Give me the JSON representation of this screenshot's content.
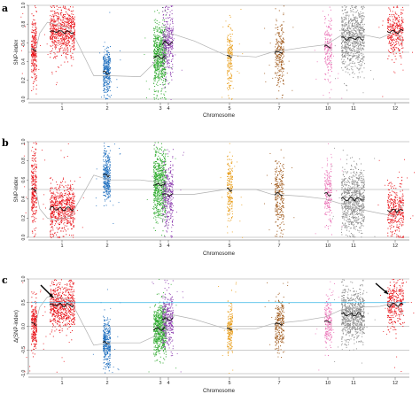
{
  "chart_data": [
    {
      "type": "scatter",
      "panel": "a",
      "xlabel": "Chromosome",
      "ylabel": "SNP-index",
      "ylim": [
        0,
        1
      ],
      "yticks": [
        "0.0",
        "0.2",
        "0.4",
        "0.6",
        "0.8",
        "1.0"
      ],
      "chromosome_ticks": [
        "1",
        "2",
        "3",
        "4",
        "5",
        "7",
        "10",
        "11",
        "12"
      ],
      "reference_lines": [
        0,
        0.5,
        1
      ],
      "clusters": [
        {
          "chr": "1a",
          "center": 0.53,
          "spread": 0.42,
          "color": "#e8151b",
          "density": 700,
          "extra": "a"
        },
        {
          "chr": "1b",
          "center": 0.72,
          "spread": 0.28,
          "color": "#e8151b",
          "density": 1800,
          "extra": "b"
        },
        {
          "chr": "2",
          "center": 0.28,
          "spread": 0.28,
          "color": "#1f6fbf",
          "density": 900
        },
        {
          "chr": "3",
          "center": 0.45,
          "spread": 0.4,
          "color": "#2eaa2e",
          "density": 1800
        },
        {
          "chr": "4",
          "center": 0.6,
          "spread": 0.4,
          "color": "#8e3fb0",
          "density": 900
        },
        {
          "chr": "5",
          "center": 0.45,
          "spread": 0.38,
          "color": "#e89d1a",
          "density": 500
        },
        {
          "chr": "7",
          "center": 0.5,
          "spread": 0.42,
          "color": "#a05a1c",
          "density": 700
        },
        {
          "chr": "10",
          "center": 0.56,
          "spread": 0.36,
          "color": "#ea6fb5",
          "density": 500
        },
        {
          "chr": "11",
          "center": 0.65,
          "spread": 0.36,
          "color": "#8c8c8c",
          "density": 2200
        },
        {
          "chr": "12",
          "center": 0.72,
          "spread": 0.28,
          "color": "#e8151b",
          "density": 900
        }
      ],
      "sliding_window": [
        [
          0.5,
          0.52
        ],
        [
          1,
          0.7
        ],
        [
          2,
          0.82
        ],
        [
          3,
          0.8
        ],
        [
          5,
          0.75
        ],
        [
          8,
          0.25
        ],
        [
          10,
          0.25
        ],
        [
          14,
          0.24
        ],
        [
          16,
          0.4
        ],
        [
          17,
          0.62
        ],
        [
          18,
          0.7
        ],
        [
          21,
          0.62
        ],
        [
          25,
          0.47
        ],
        [
          27,
          0.46
        ],
        [
          29,
          0.45
        ],
        [
          31,
          0.5
        ],
        [
          35,
          0.55
        ],
        [
          38,
          0.58
        ],
        [
          40,
          0.68
        ],
        [
          42,
          0.7
        ],
        [
          45,
          0.65
        ],
        [
          47,
          0.72
        ],
        [
          48,
          0.6
        ]
      ]
    },
    {
      "type": "scatter",
      "panel": "b",
      "xlabel": "Chromosome",
      "ylabel": "SNP-index",
      "ylim": [
        0,
        1
      ],
      "yticks": [
        "0.0",
        "0.2",
        "0.4",
        "0.6",
        "0.8",
        "1.0"
      ],
      "chromosome_ticks": [
        "1",
        "2",
        "3",
        "4",
        "5",
        "7",
        "10",
        "11",
        "12"
      ],
      "reference_lines": [
        0,
        0.5,
        1
      ],
      "clusters": [
        {
          "chr": "1a",
          "center": 0.5,
          "spread": 0.42,
          "color": "#e8151b",
          "density": 700
        },
        {
          "chr": "1b",
          "center": 0.3,
          "spread": 0.28,
          "color": "#e8151b",
          "density": 1800
        },
        {
          "chr": "2",
          "center": 0.65,
          "spread": 0.3,
          "color": "#1f6fbf",
          "density": 900
        },
        {
          "chr": "3",
          "center": 0.55,
          "spread": 0.4,
          "color": "#2eaa2e",
          "density": 1800
        },
        {
          "chr": "4",
          "center": 0.45,
          "spread": 0.4,
          "color": "#8e3fb0",
          "density": 900
        },
        {
          "chr": "5",
          "center": 0.5,
          "spread": 0.38,
          "color": "#e89d1a",
          "density": 500
        },
        {
          "chr": "7",
          "center": 0.45,
          "spread": 0.42,
          "color": "#a05a1c",
          "density": 700
        },
        {
          "chr": "10",
          "center": 0.45,
          "spread": 0.36,
          "color": "#ea6fb5",
          "density": 500
        },
        {
          "chr": "11",
          "center": 0.4,
          "spread": 0.36,
          "color": "#8c8c8c",
          "density": 2200
        },
        {
          "chr": "12",
          "center": 0.28,
          "spread": 0.28,
          "color": "#e8151b",
          "density": 900
        }
      ],
      "sliding_window": [
        [
          0.5,
          0.5
        ],
        [
          1,
          0.3
        ],
        [
          2,
          0.2
        ],
        [
          3,
          0.18
        ],
        [
          5,
          0.22
        ],
        [
          8,
          0.65
        ],
        [
          10,
          0.6
        ],
        [
          14,
          0.6
        ],
        [
          16,
          0.58
        ],
        [
          17,
          0.55
        ],
        [
          18,
          0.45
        ],
        [
          21,
          0.45
        ],
        [
          25,
          0.5
        ],
        [
          27,
          0.5
        ],
        [
          29,
          0.5
        ],
        [
          31,
          0.45
        ],
        [
          35,
          0.43
        ],
        [
          38,
          0.4
        ],
        [
          40,
          0.35
        ],
        [
          42,
          0.3
        ],
        [
          45,
          0.25
        ],
        [
          47,
          0.22
        ],
        [
          48,
          0.35
        ]
      ]
    },
    {
      "type": "scatter",
      "panel": "c",
      "xlabel": "Chromosome",
      "ylabel": "Δ(SNP-index)",
      "ylim": [
        -1,
        1
      ],
      "yticks": [
        "-1.0",
        "-0.5",
        "0.0",
        "0.5",
        "1.0"
      ],
      "chromosome_ticks": [
        "1",
        "2",
        "3",
        "4",
        "5",
        "7",
        "10",
        "11",
        "12"
      ],
      "reference_lines": [
        -1,
        -0.5,
        0,
        0.5,
        1
      ],
      "threshold_line": 0.5,
      "threshold_color": "#33b5e5",
      "arrows": [
        "chr1",
        "chr12"
      ],
      "clusters": [
        {
          "chr": "1a",
          "center": 0.05,
          "spread": 0.55,
          "color": "#e8151b",
          "density": 700
        },
        {
          "chr": "1b",
          "center": 0.45,
          "spread": 0.55,
          "color": "#e8151b",
          "density": 1800
        },
        {
          "chr": "2",
          "center": -0.35,
          "spread": 0.55,
          "color": "#1f6fbf",
          "density": 900
        },
        {
          "chr": "3",
          "center": -0.05,
          "spread": 0.6,
          "color": "#2eaa2e",
          "density": 1800
        },
        {
          "chr": "4",
          "center": 0.15,
          "spread": 0.6,
          "color": "#8e3fb0",
          "density": 900
        },
        {
          "chr": "5",
          "center": -0.05,
          "spread": 0.55,
          "color": "#e89d1a",
          "density": 500
        },
        {
          "chr": "7",
          "center": 0.05,
          "spread": 0.6,
          "color": "#a05a1c",
          "density": 700
        },
        {
          "chr": "10",
          "center": 0.1,
          "spread": 0.55,
          "color": "#ea6fb5",
          "density": 500
        },
        {
          "chr": "11",
          "center": 0.25,
          "spread": 0.6,
          "color": "#8c8c8c",
          "density": 2200
        },
        {
          "chr": "12",
          "center": 0.45,
          "spread": 0.55,
          "color": "#e8151b",
          "density": 900
        }
      ],
      "sliding_window": [
        [
          0.5,
          0.05
        ],
        [
          1,
          0.4
        ],
        [
          2,
          0.62
        ],
        [
          3,
          0.62
        ],
        [
          5,
          0.55
        ],
        [
          8,
          -0.4
        ],
        [
          10,
          -0.35
        ],
        [
          14,
          -0.35
        ],
        [
          16,
          -0.2
        ],
        [
          17,
          0.05
        ],
        [
          18,
          0.25
        ],
        [
          21,
          0.15
        ],
        [
          25,
          -0.05
        ],
        [
          27,
          -0.05
        ],
        [
          29,
          -0.05
        ],
        [
          31,
          0.05
        ],
        [
          35,
          0.12
        ],
        [
          38,
          0.2
        ],
        [
          40,
          0.35
        ],
        [
          42,
          0.4
        ],
        [
          45,
          0.42
        ],
        [
          47,
          0.5
        ],
        [
          48,
          0.25
        ]
      ]
    }
  ],
  "labels": {
    "a": "a",
    "b": "b",
    "c": "c"
  }
}
